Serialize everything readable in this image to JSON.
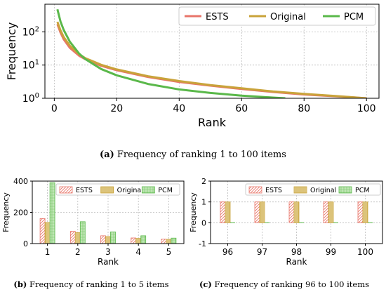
{
  "captions": {
    "a": {
      "prefix": "(a)",
      "text": " Frequency of ranking 1 to 100 items"
    },
    "b": {
      "prefix": "(b)",
      "text": " Frequency of ranking 1 to 5 items"
    },
    "c": {
      "prefix": "(c)",
      "text": " Frequency of ranking 96 to 100 items"
    }
  },
  "colors": {
    "ESTS": "#e8756a",
    "Original": "#c9a33a",
    "PCM": "#5ab84a"
  },
  "chart_data": [
    {
      "id": "a",
      "type": "line",
      "xlabel": "Rank",
      "ylabel": "Frequency",
      "yscale": "log",
      "xlim": [
        -3,
        104
      ],
      "ylim": [
        1,
        680
      ],
      "xticks": [
        "0",
        "20",
        "40",
        "60",
        "80",
        "100"
      ],
      "yticks": [
        "10^0",
        "10^1",
        "10^2"
      ],
      "grid": true,
      "legend_position": "top-right",
      "series": [
        {
          "name": "ESTS",
          "x": [
            1,
            2,
            3,
            5,
            8,
            10,
            15,
            20,
            30,
            40,
            50,
            60,
            70,
            80,
            90,
            100
          ],
          "y": [
            170,
            95,
            60,
            33,
            19,
            15,
            9.5,
            7,
            4.4,
            3.1,
            2.4,
            1.9,
            1.55,
            1.3,
            1.15,
            1.0
          ]
        },
        {
          "name": "Original",
          "x": [
            1,
            2,
            3,
            5,
            8,
            10,
            15,
            20,
            30,
            40,
            50,
            60,
            70,
            80,
            90,
            100
          ],
          "y": [
            200,
            110,
            70,
            38,
            21,
            16,
            10.2,
            7.4,
            4.6,
            3.3,
            2.5,
            2.0,
            1.6,
            1.35,
            1.17,
            1.0
          ]
        },
        {
          "name": "PCM",
          "x": [
            1,
            2,
            3,
            5,
            8,
            10,
            15,
            20,
            30,
            40,
            50,
            60,
            70,
            74
          ],
          "y": [
            480,
            205,
            115,
            50,
            22,
            15,
            7.6,
            4.9,
            2.7,
            1.85,
            1.45,
            1.2,
            1.05,
            1.0
          ]
        }
      ]
    },
    {
      "id": "b",
      "type": "bar",
      "xlabel": "Rank",
      "ylabel": "Frequency",
      "categories": [
        "1",
        "2",
        "3",
        "4",
        "5"
      ],
      "ylim": [
        0,
        400
      ],
      "yticks": [
        "0",
        "200",
        "400"
      ],
      "grid": true,
      "legend_position": "top",
      "series": [
        {
          "name": "ESTS",
          "values": [
            160,
            78,
            50,
            36,
            28
          ]
        },
        {
          "name": "Original",
          "values": [
            135,
            70,
            45,
            33,
            27
          ]
        },
        {
          "name": "PCM",
          "values": [
            390,
            140,
            75,
            50,
            35
          ]
        }
      ]
    },
    {
      "id": "c",
      "type": "bar",
      "xlabel": "Rank",
      "ylabel": "Frequency",
      "categories": [
        "96",
        "97",
        "98",
        "99",
        "100"
      ],
      "ylim": [
        -1,
        2
      ],
      "yticks": [
        "-1",
        "0",
        "1",
        "2"
      ],
      "grid": true,
      "legend_position": "top",
      "series": [
        {
          "name": "ESTS",
          "values": [
            1,
            1,
            1,
            1,
            1
          ]
        },
        {
          "name": "Original",
          "values": [
            1,
            1,
            1,
            1,
            1
          ]
        },
        {
          "name": "PCM",
          "values": [
            0,
            0,
            0,
            0,
            0
          ]
        }
      ]
    }
  ]
}
